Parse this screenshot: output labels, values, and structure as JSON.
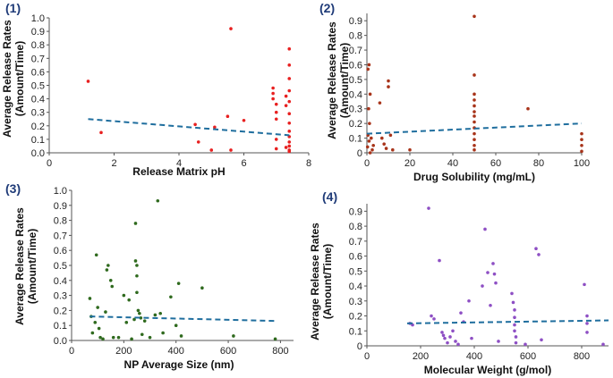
{
  "chart_data": [
    {
      "type": "scatter",
      "panel_label": "(1)",
      "color": "#e82020",
      "trend_color": "#1f6e9e",
      "xlabel": "Release Matrix pH",
      "ylabel_line1": "Average Release Rates",
      "ylabel_line2": "(Amount/Time)",
      "xlim": [
        0,
        8
      ],
      "ylim": [
        0,
        1.0
      ],
      "xticks": [
        "0",
        "2",
        "4",
        "6",
        "8"
      ],
      "xtick_values": [
        0,
        2,
        4,
        6,
        8
      ],
      "yticks": [
        "0.0",
        "0.1",
        "0.2",
        "0.3",
        "0.4",
        "0.5",
        "0.6",
        "0.7",
        "0.8",
        "0.9",
        "1.0"
      ],
      "ytick_values": [
        0,
        0.1,
        0.2,
        0.3,
        0.4,
        0.5,
        0.6,
        0.7,
        0.8,
        0.9,
        1.0
      ],
      "trend": [
        [
          1.2,
          0.25
        ],
        [
          7.4,
          0.13
        ]
      ],
      "points": [
        [
          1.2,
          0.53
        ],
        [
          1.6,
          0.15
        ],
        [
          4.5,
          0.21
        ],
        [
          4.6,
          0.08
        ],
        [
          5.0,
          0.02
        ],
        [
          5.1,
          0.19
        ],
        [
          5.5,
          0.27
        ],
        [
          5.6,
          0.92
        ],
        [
          5.6,
          0.02
        ],
        [
          6.0,
          0.24
        ],
        [
          6.9,
          0.48
        ],
        [
          6.9,
          0.44
        ],
        [
          6.9,
          0.4
        ],
        [
          7.0,
          0.36
        ],
        [
          7.0,
          0.3
        ],
        [
          7.0,
          0.25
        ],
        [
          7.0,
          0.1
        ],
        [
          7.0,
          0.03
        ],
        [
          7.3,
          0.42
        ],
        [
          7.3,
          0.35
        ],
        [
          7.3,
          0.04
        ],
        [
          7.4,
          0.77
        ],
        [
          7.4,
          0.65
        ],
        [
          7.4,
          0.55
        ],
        [
          7.4,
          0.46
        ],
        [
          7.4,
          0.38
        ],
        [
          7.4,
          0.29
        ],
        [
          7.4,
          0.22
        ],
        [
          7.4,
          0.16
        ],
        [
          7.4,
          0.12
        ],
        [
          7.4,
          0.08
        ],
        [
          7.4,
          0.05
        ],
        [
          7.4,
          0.02
        ],
        [
          7.4,
          0.01
        ]
      ]
    },
    {
      "type": "scatter",
      "panel_label": "(2)",
      "color": "#a8341a",
      "trend_color": "#1f6e9e",
      "xlabel": "Drug Solubility (mg/mL)",
      "ylabel_line1": "Average Release Rates",
      "ylabel_line2": "(Amount/Time)",
      "xlim": [
        0,
        100
      ],
      "ylim": [
        0,
        0.95
      ],
      "xticks": [
        "0",
        "20",
        "40",
        "60",
        "80",
        "100"
      ],
      "xtick_values": [
        0,
        20,
        40,
        60,
        80,
        100
      ],
      "yticks": [
        "0",
        "0.1",
        "0.2",
        "0.3",
        "0.4",
        "0.5",
        "0.6",
        "0.7",
        "0.8",
        "0.9"
      ],
      "ytick_values": [
        0,
        0.1,
        0.2,
        0.3,
        0.4,
        0.5,
        0.6,
        0.7,
        0.8,
        0.9
      ],
      "trend": [
        [
          0,
          0.13
        ],
        [
          100,
          0.2
        ]
      ],
      "points": [
        [
          0.5,
          0.57
        ],
        [
          1.0,
          0.6
        ],
        [
          1.5,
          0.4
        ],
        [
          0.8,
          0.3
        ],
        [
          1.2,
          0.2
        ],
        [
          0.5,
          0.12
        ],
        [
          1.0,
          0.08
        ],
        [
          0.3,
          0.04
        ],
        [
          2.0,
          0.1
        ],
        [
          3.0,
          0.05
        ],
        [
          2.5,
          0.02
        ],
        [
          1.5,
          0.0
        ],
        [
          6.0,
          0.34
        ],
        [
          7.0,
          0.1
        ],
        [
          8.0,
          0.06
        ],
        [
          9.0,
          0.03
        ],
        [
          10.0,
          0.49
        ],
        [
          10.0,
          0.45
        ],
        [
          11.0,
          0.12
        ],
        [
          12.0,
          0.02
        ],
        [
          20.0,
          0.02
        ],
        [
          50.0,
          0.93
        ],
        [
          50.0,
          0.53
        ],
        [
          50.0,
          0.4
        ],
        [
          50.0,
          0.36
        ],
        [
          50.0,
          0.32
        ],
        [
          50.0,
          0.28
        ],
        [
          50.0,
          0.25
        ],
        [
          50.0,
          0.21
        ],
        [
          50.0,
          0.17
        ],
        [
          50.0,
          0.13
        ],
        [
          50.0,
          0.09
        ],
        [
          50.0,
          0.05
        ],
        [
          50.0,
          0.02
        ],
        [
          75.0,
          0.3
        ],
        [
          100.0,
          0.13
        ],
        [
          100.0,
          0.09
        ],
        [
          100.0,
          0.05
        ],
        [
          100.0,
          0.01
        ]
      ]
    },
    {
      "type": "scatter",
      "panel_label": "(3)",
      "color": "#2f6a1e",
      "trend_color": "#1f6e9e",
      "xlabel": "NP Average Size (nm)",
      "ylabel_line1": "Average Release Rates",
      "ylabel_line2": "(Amount/Time)",
      "xlim": [
        0,
        850
      ],
      "ylim": [
        0,
        1.0
      ],
      "xticks": [
        "0",
        "200",
        "400",
        "600",
        "800"
      ],
      "xtick_values": [
        0,
        200,
        400,
        600,
        800
      ],
      "yticks": [
        "0.0",
        "0.1",
        "0.2",
        "0.3",
        "0.4",
        "0.5",
        "0.6",
        "0.7",
        "0.8",
        "0.9",
        "1.0"
      ],
      "ytick_values": [
        0,
        0.1,
        0.2,
        0.3,
        0.4,
        0.5,
        0.6,
        0.7,
        0.8,
        0.9,
        1.0
      ],
      "trend": [
        [
          70,
          0.16
        ],
        [
          780,
          0.13
        ]
      ],
      "points": [
        [
          70,
          0.28
        ],
        [
          75,
          0.16
        ],
        [
          80,
          0.05
        ],
        [
          90,
          0.12
        ],
        [
          95,
          0.57
        ],
        [
          100,
          0.22
        ],
        [
          105,
          0.08
        ],
        [
          110,
          0.02
        ],
        [
          120,
          0.01
        ],
        [
          130,
          0.19
        ],
        [
          135,
          0.47
        ],
        [
          140,
          0.5
        ],
        [
          150,
          0.4
        ],
        [
          155,
          0.36
        ],
        [
          160,
          0.02
        ],
        [
          180,
          0.02
        ],
        [
          200,
          0.3
        ],
        [
          210,
          0.12
        ],
        [
          220,
          0.27
        ],
        [
          230,
          0.01
        ],
        [
          240,
          0.14
        ],
        [
          245,
          0.78
        ],
        [
          245,
          0.53
        ],
        [
          250,
          0.5
        ],
        [
          250,
          0.43
        ],
        [
          250,
          0.32
        ],
        [
          255,
          0.2
        ],
        [
          260,
          0.18
        ],
        [
          265,
          0.15
        ],
        [
          270,
          0.04
        ],
        [
          280,
          0.13
        ],
        [
          300,
          0.02
        ],
        [
          320,
          0.17
        ],
        [
          330,
          0.93
        ],
        [
          340,
          0.18
        ],
        [
          350,
          0.05
        ],
        [
          380,
          0.29
        ],
        [
          400,
          0.1
        ],
        [
          410,
          0.38
        ],
        [
          420,
          0.03
        ],
        [
          500,
          0.35
        ],
        [
          620,
          0.03
        ],
        [
          780,
          0.01
        ]
      ]
    },
    {
      "type": "scatter",
      "panel_label": "(4)",
      "color": "#8e4fc4",
      "trend_color": "#1f6e9e",
      "xlabel": "Molecular Weight (g/mol)",
      "ylabel_line1": "Average Release Rates",
      "ylabel_line2": "(Amount/Time)",
      "xlim": [
        0,
        900
      ],
      "ylim": [
        0,
        0.95
      ],
      "xticks": [
        "0",
        "200",
        "400",
        "600",
        "800"
      ],
      "xtick_values": [
        0,
        200,
        400,
        600,
        800
      ],
      "yticks": [
        "0",
        "0.1",
        "0.2",
        "0.3",
        "0.4",
        "0.5",
        "0.6",
        "0.7",
        "0.8",
        "0.9"
      ],
      "ytick_values": [
        0,
        0.1,
        0.2,
        0.3,
        0.4,
        0.5,
        0.6,
        0.7,
        0.8,
        0.9
      ],
      "trend": [
        [
          150,
          0.15
        ],
        [
          900,
          0.17
        ]
      ],
      "points": [
        [
          160,
          0.15
        ],
        [
          170,
          0.14
        ],
        [
          230,
          0.92
        ],
        [
          240,
          0.2
        ],
        [
          250,
          0.18
        ],
        [
          270,
          0.57
        ],
        [
          280,
          0.09
        ],
        [
          285,
          0.07
        ],
        [
          290,
          0.05
        ],
        [
          300,
          0.02
        ],
        [
          310,
          0.06
        ],
        [
          320,
          0.1
        ],
        [
          330,
          0.03
        ],
        [
          340,
          0.01
        ],
        [
          350,
          0.22
        ],
        [
          360,
          0.16
        ],
        [
          380,
          0.3
        ],
        [
          390,
          0.05
        ],
        [
          430,
          0.4
        ],
        [
          440,
          0.78
        ],
        [
          450,
          0.49
        ],
        [
          460,
          0.27
        ],
        [
          470,
          0.55
        ],
        [
          475,
          0.48
        ],
        [
          480,
          0.42
        ],
        [
          490,
          0.03
        ],
        [
          540,
          0.35
        ],
        [
          545,
          0.29
        ],
        [
          550,
          0.24
        ],
        [
          550,
          0.19
        ],
        [
          550,
          0.14
        ],
        [
          550,
          0.1
        ],
        [
          555,
          0.06
        ],
        [
          555,
          0.02
        ],
        [
          590,
          0.01
        ],
        [
          630,
          0.65
        ],
        [
          640,
          0.61
        ],
        [
          650,
          0.04
        ],
        [
          810,
          0.41
        ],
        [
          820,
          0.2
        ],
        [
          820,
          0.15
        ],
        [
          820,
          0.09
        ],
        [
          880,
          0.01
        ]
      ]
    }
  ]
}
